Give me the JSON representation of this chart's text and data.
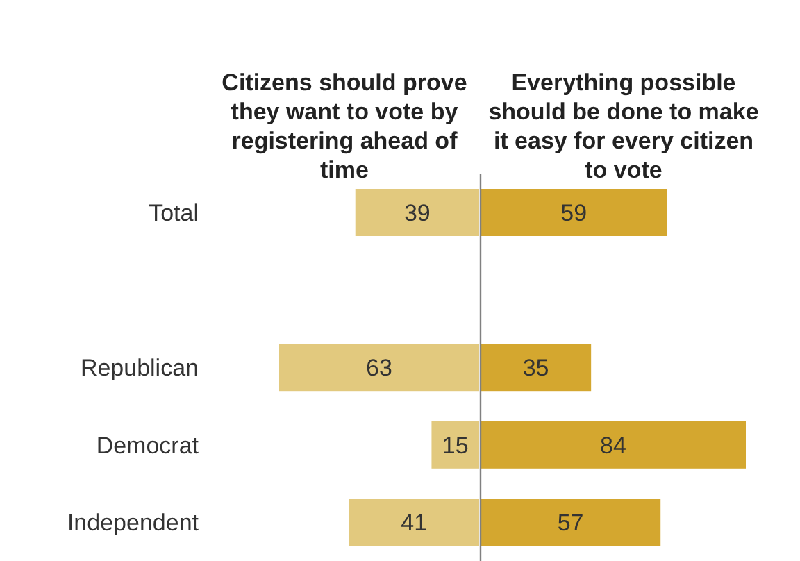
{
  "chart_data": [
    {
      "type": "bar",
      "orientation": "horizontal",
      "title": "Citizens should prove they want to vote by registering ahead of time",
      "categories": [
        "Total",
        null,
        "Republican",
        "Democrat",
        "Independent"
      ],
      "series": [
        {
          "color": "#e2c97e",
          "values": [
            39,
            null,
            63,
            15,
            41
          ]
        }
      ],
      "xlim": [
        63,
        0
      ],
      "data_labels": true,
      "tick_labels": "y",
      "grid": false
    },
    {
      "type": "bar",
      "orientation": "horizontal",
      "title": "Everything possible should be done to make it easy for every citizen to vote",
      "categories": [
        null,
        null,
        null,
        null,
        null
      ],
      "series": [
        {
          "color": "#d4a72f",
          "values": [
            59,
            null,
            35,
            84,
            57
          ]
        }
      ],
      "xlim": [
        0,
        84
      ],
      "data_labels": true,
      "tick_labels": false,
      "grid": false
    }
  ]
}
